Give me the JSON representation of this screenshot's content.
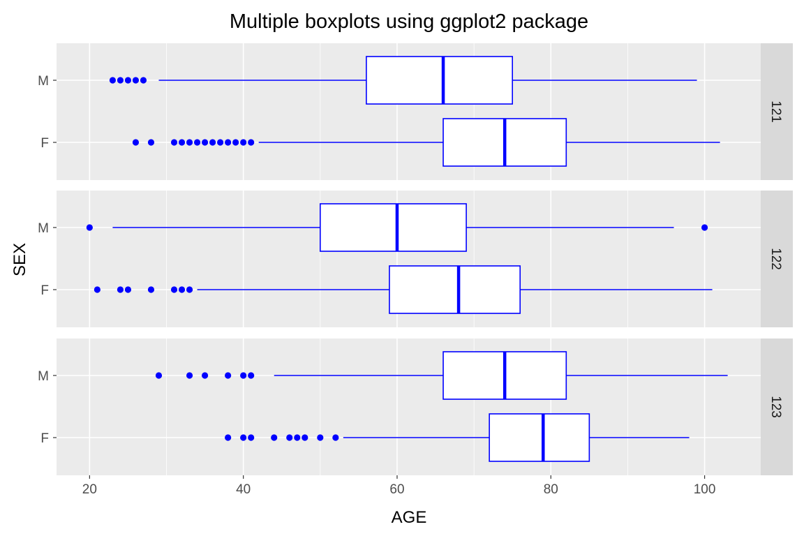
{
  "chart_data": {
    "type": "boxplot",
    "title": "Multiple boxplots using ggplot2 package",
    "xlabel": "AGE",
    "ylabel": "SEX",
    "xlim": [
      15.7,
      107.3
    ],
    "x_ticks": [
      20,
      40,
      60,
      80,
      100
    ],
    "x_tick_labels": [
      "20",
      "40",
      "60",
      "80",
      "100"
    ],
    "grid": true,
    "colors": {
      "box_outline": "#0000ff",
      "box_fill": "#ffffff",
      "panel_background": "#ebebeb",
      "grid_line": "#ffffff",
      "strip_background": "#d9d9d9"
    },
    "panels": [
      {
        "strip": "121",
        "groups": [
          {
            "sex": "M",
            "min": 29,
            "q1": 56,
            "median": 66,
            "q3": 75,
            "max": 99,
            "outliers": [
              23,
              24,
              25,
              26,
              27
            ]
          },
          {
            "sex": "F",
            "min": 42,
            "q1": 66,
            "median": 74,
            "q3": 82,
            "max": 102,
            "outliers": [
              26,
              28,
              31,
              32,
              33,
              34,
              35,
              36,
              37,
              38,
              39,
              40,
              41
            ]
          }
        ]
      },
      {
        "strip": "122",
        "groups": [
          {
            "sex": "M",
            "min": 23,
            "q1": 50,
            "median": 60,
            "q3": 69,
            "max": 96,
            "outliers": [
              20,
              100
            ]
          },
          {
            "sex": "F",
            "min": 34,
            "q1": 59,
            "median": 68,
            "q3": 76,
            "max": 101,
            "outliers": [
              21,
              24,
              25,
              28,
              31,
              32,
              33
            ]
          }
        ]
      },
      {
        "strip": "123",
        "groups": [
          {
            "sex": "M",
            "min": 44,
            "q1": 66,
            "median": 74,
            "q3": 82,
            "max": 103,
            "outliers": [
              29,
              33,
              35,
              38,
              40,
              41
            ]
          },
          {
            "sex": "F",
            "min": 53,
            "q1": 72,
            "median": 79,
            "q3": 85,
            "max": 98,
            "outliers": [
              38,
              40,
              41,
              44,
              46,
              47,
              48,
              50,
              52
            ]
          }
        ]
      }
    ]
  }
}
